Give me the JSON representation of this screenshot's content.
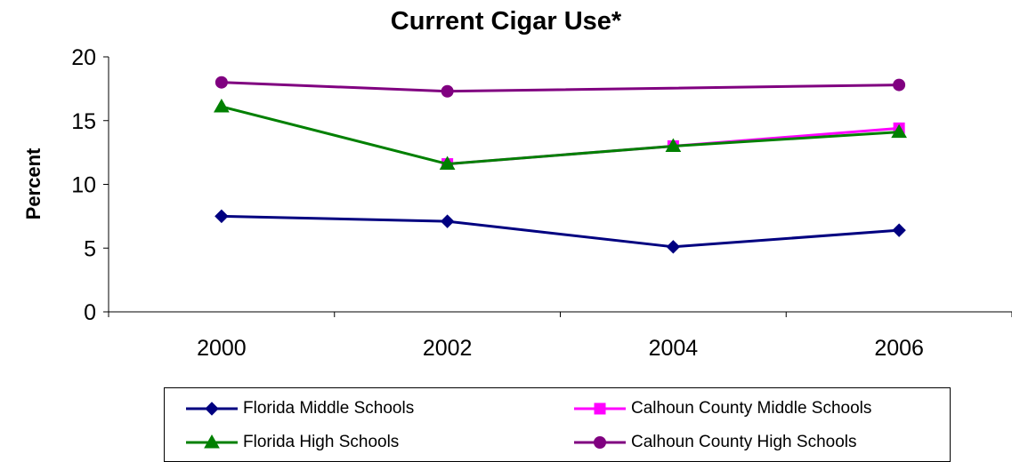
{
  "chart_data": {
    "type": "line",
    "title": "Current Cigar Use*",
    "xlabel": "",
    "ylabel": "Percent",
    "categories": [
      "2000",
      "2002",
      "2004",
      "2006"
    ],
    "ylim": [
      0,
      20
    ],
    "yticks": [
      "0",
      "5",
      "10",
      "15",
      "20"
    ],
    "grid": false,
    "legend_position": "bottom",
    "series": [
      {
        "name": "Florida Middle Schools",
        "values": [
          7.5,
          7.1,
          5.1,
          6.4
        ],
        "color": "#000080",
        "marker": "diamond"
      },
      {
        "name": "Calhoun County Middle Schools",
        "values": [
          null,
          11.6,
          13.0,
          14.4
        ],
        "color": "#ff00ff",
        "marker": "square"
      },
      {
        "name": "Florida High Schools",
        "values": [
          16.1,
          11.6,
          13.0,
          14.1
        ],
        "color": "#008000",
        "marker": "triangle"
      },
      {
        "name": "Calhoun County High Schools",
        "values": [
          18.0,
          17.3,
          null,
          17.8
        ],
        "color": "#800080",
        "marker": "circle"
      }
    ]
  }
}
